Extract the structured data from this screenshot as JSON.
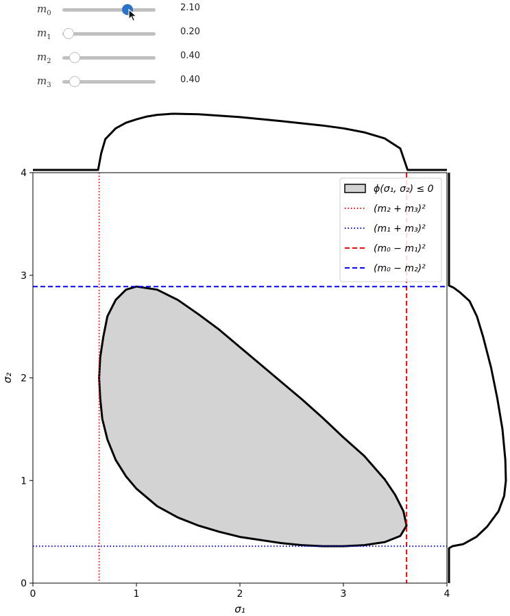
{
  "sliders": [
    {
      "symbol": "m",
      "sub": "0",
      "value": 2.1,
      "value_label": "2.10",
      "min": 0,
      "max": 3,
      "active": true
    },
    {
      "symbol": "m",
      "sub": "1",
      "value": 0.2,
      "value_label": "0.20",
      "min": 0,
      "max": 3,
      "active": false
    },
    {
      "symbol": "m",
      "sub": "2",
      "value": 0.4,
      "value_label": "0.40",
      "min": 0,
      "max": 3,
      "active": false
    },
    {
      "symbol": "m",
      "sub": "3",
      "value": 0.4,
      "value_label": "0.40",
      "min": 0,
      "max": 3,
      "active": false
    }
  ],
  "chart_data": {
    "type": "area",
    "xlabel": "σ₁",
    "ylabel": "σ₂",
    "xlim": [
      0,
      4
    ],
    "ylim": [
      0,
      4
    ],
    "xticks": [
      "0",
      "1",
      "2",
      "3",
      "4"
    ],
    "yticks": [
      "0",
      "1",
      "2",
      "3",
      "4"
    ],
    "grid": false,
    "legend_position": "top-right",
    "legend": [
      {
        "label": "ϕ(σ₁, σ₂) ≤ 0",
        "style": "patch",
        "color": "#d3d3d3"
      },
      {
        "label": "(m₂ + m₃)²",
        "style": "dotted",
        "color": "#ff0000"
      },
      {
        "label": "(m₁ + m₃)²",
        "style": "dotted",
        "color": "#0000ff"
      },
      {
        "label": "(m₀ − m₁)²",
        "style": "dashed",
        "color": "#ff0000"
      },
      {
        "label": "(m₀ − m₂)²",
        "style": "dashed",
        "color": "#0000ff"
      }
    ],
    "vlines": [
      {
        "x": 0.64,
        "style": "dotted",
        "color": "#ff0000"
      },
      {
        "x": 3.61,
        "style": "dashed",
        "color": "#ff0000"
      }
    ],
    "hlines": [
      {
        "y": 0.36,
        "style": "dotted",
        "color": "#0000ff"
      },
      {
        "y": 2.89,
        "style": "dashed",
        "color": "#0000ff"
      }
    ],
    "region_boundary": [
      [
        1.0,
        2.89
      ],
      [
        1.2,
        2.86
      ],
      [
        1.4,
        2.76
      ],
      [
        1.6,
        2.62
      ],
      [
        1.8,
        2.47
      ],
      [
        2.0,
        2.3
      ],
      [
        2.2,
        2.13
      ],
      [
        2.4,
        1.96
      ],
      [
        2.6,
        1.79
      ],
      [
        2.8,
        1.61
      ],
      [
        3.0,
        1.42
      ],
      [
        3.2,
        1.24
      ],
      [
        3.4,
        1.01
      ],
      [
        3.5,
        0.86
      ],
      [
        3.58,
        0.7
      ],
      [
        3.61,
        0.56
      ],
      [
        3.55,
        0.46
      ],
      [
        3.4,
        0.4
      ],
      [
        3.2,
        0.37
      ],
      [
        3.0,
        0.36
      ],
      [
        2.8,
        0.36
      ],
      [
        2.6,
        0.37
      ],
      [
        2.4,
        0.39
      ],
      [
        2.2,
        0.42
      ],
      [
        2.0,
        0.45
      ],
      [
        1.8,
        0.5
      ],
      [
        1.6,
        0.56
      ],
      [
        1.4,
        0.64
      ],
      [
        1.2,
        0.75
      ],
      [
        1.0,
        0.92
      ],
      [
        0.9,
        1.04
      ],
      [
        0.8,
        1.2
      ],
      [
        0.72,
        1.4
      ],
      [
        0.67,
        1.6
      ],
      [
        0.65,
        1.8
      ],
      [
        0.64,
        2.0
      ],
      [
        0.65,
        2.2
      ],
      [
        0.68,
        2.4
      ],
      [
        0.72,
        2.6
      ],
      [
        0.8,
        2.76
      ],
      [
        0.9,
        2.86
      ],
      [
        1.0,
        2.89
      ]
    ],
    "marginal_x": [
      [
        0.0,
        0.0
      ],
      [
        0.63,
        0.0
      ],
      [
        0.66,
        0.3
      ],
      [
        0.7,
        0.55
      ],
      [
        0.8,
        0.74
      ],
      [
        0.9,
        0.84
      ],
      [
        1.0,
        0.9
      ],
      [
        1.1,
        0.95
      ],
      [
        1.2,
        0.98
      ],
      [
        1.35,
        1.0
      ],
      [
        1.6,
        0.99
      ],
      [
        2.0,
        0.94
      ],
      [
        2.4,
        0.87
      ],
      [
        2.8,
        0.79
      ],
      [
        3.0,
        0.74
      ],
      [
        3.2,
        0.67
      ],
      [
        3.4,
        0.56
      ],
      [
        3.55,
        0.38
      ],
      [
        3.62,
        0.0
      ],
      [
        4.0,
        0.0
      ]
    ],
    "marginal_y": [
      [
        0.0,
        0.0
      ],
      [
        0.34,
        0.0
      ],
      [
        0.36,
        0.06
      ],
      [
        0.38,
        0.25
      ],
      [
        0.45,
        0.48
      ],
      [
        0.55,
        0.67
      ],
      [
        0.7,
        0.87
      ],
      [
        0.85,
        0.97
      ],
      [
        1.0,
        1.0
      ],
      [
        1.2,
        0.99
      ],
      [
        1.5,
        0.94
      ],
      [
        1.8,
        0.85
      ],
      [
        2.1,
        0.74
      ],
      [
        2.4,
        0.6
      ],
      [
        2.6,
        0.49
      ],
      [
        2.75,
        0.36
      ],
      [
        2.83,
        0.2
      ],
      [
        2.88,
        0.08
      ],
      [
        2.9,
        0.0
      ],
      [
        4.0,
        0.0
      ]
    ]
  }
}
